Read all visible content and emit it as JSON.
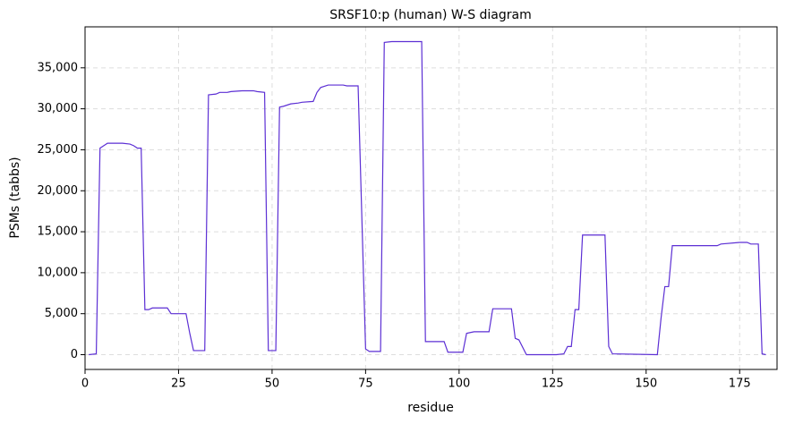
{
  "chart_data": {
    "type": "line",
    "title": "SRSF10:p (human) W-S diagram",
    "xlabel": "residue",
    "ylabel": "PSMs (tabbs)",
    "xlim": [
      0,
      185
    ],
    "ylim": [
      -1800,
      40000
    ],
    "xticks": [
      0,
      25,
      50,
      75,
      100,
      125,
      150,
      175
    ],
    "yticks": [
      0,
      {
        "value": 5000,
        "label": "5,000"
      },
      {
        "value": 10000,
        "label": "10,000"
      },
      {
        "value": 15000,
        "label": "15,000"
      },
      {
        "value": 20000,
        "label": "20,000"
      },
      {
        "value": 25000,
        "label": "25,000"
      },
      {
        "value": 30000,
        "label": "30,000"
      },
      {
        "value": 35000,
        "label": "35,000"
      }
    ],
    "grid": true,
    "series": [
      {
        "color": "#5c2fd4",
        "x": [
          1,
          3,
          4,
          5,
          6,
          10,
          12,
          13,
          14,
          15,
          16,
          17,
          18,
          22,
          23,
          27,
          28,
          29,
          32,
          33,
          35,
          36,
          38,
          39,
          42,
          45,
          46,
          48,
          49,
          51,
          52,
          53,
          55,
          57,
          58,
          61,
          62,
          63,
          65,
          69,
          70,
          73,
          75,
          76,
          79,
          80,
          82,
          90,
          91,
          96,
          97,
          101,
          102,
          103,
          104,
          108,
          109,
          114,
          115,
          116,
          118,
          126,
          128,
          129,
          130,
          131,
          132,
          133,
          139,
          140,
          141,
          153,
          154,
          155,
          156,
          157,
          169,
          170,
          175,
          177,
          178,
          180,
          181,
          182
        ],
        "values": [
          0,
          100,
          25200,
          25500,
          25800,
          25800,
          25700,
          25500,
          25200,
          25200,
          5500,
          5500,
          5700,
          5700,
          5000,
          5000,
          2600,
          500,
          500,
          31700,
          31800,
          32000,
          32000,
          32100,
          32200,
          32200,
          32100,
          32000,
          500,
          500,
          30200,
          30300,
          30600,
          30700,
          30800,
          30900,
          32000,
          32600,
          32900,
          32900,
          32800,
          32800,
          700,
          400,
          400,
          38100,
          38200,
          38200,
          1600,
          1600,
          300,
          300,
          2600,
          2700,
          2800,
          2800,
          5600,
          5600,
          2000,
          1800,
          0,
          0,
          100,
          1000,
          1000,
          5500,
          5500,
          14600,
          14600,
          1000,
          100,
          0,
          4500,
          8300,
          8300,
          13300,
          13300,
          13500,
          13700,
          13700,
          13500,
          13500,
          100,
          0
        ]
      }
    ]
  }
}
